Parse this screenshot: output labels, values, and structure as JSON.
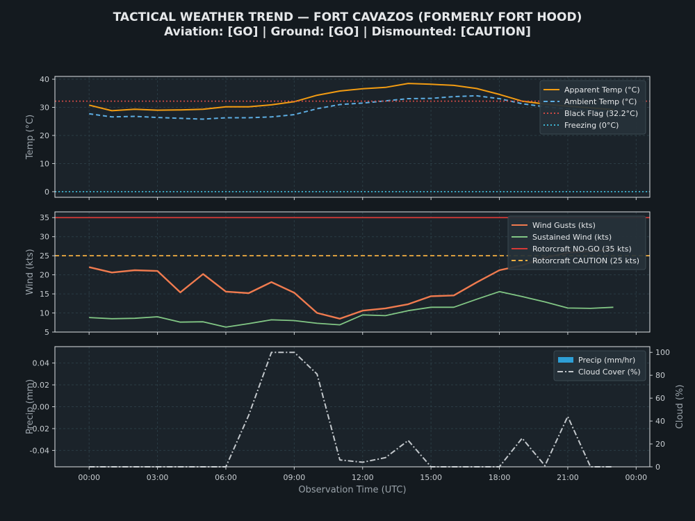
{
  "chart_data": {
    "title": "TACTICAL WEATHER TREND — FORT CAVAZOS (FORMERLY FORT HOOD)",
    "subtitle": "Aviation: [GO]  |  Ground: [GO]  |  Dismounted: [CAUTION]",
    "xlabel": "Observation Time (UTC)",
    "x_ticks": [
      "00:00",
      "03:00",
      "06:00",
      "09:00",
      "12:00",
      "15:00",
      "18:00",
      "21:00",
      "00:00"
    ],
    "x_hours": [
      0,
      1,
      2,
      3,
      4,
      5,
      6,
      7,
      8,
      9,
      10,
      11,
      12,
      13,
      14,
      15,
      16,
      17,
      18,
      19,
      20,
      21,
      22,
      23
    ],
    "x_range_hours": [
      -1.5,
      24.6
    ],
    "panels": [
      {
        "type": "line",
        "ylabel": "Temp (°C)",
        "ylim": [
          -2,
          41
        ],
        "y_ticks": [
          0,
          10,
          20,
          30,
          40
        ],
        "legend": "top-right",
        "series": [
          {
            "name": "Apparent Temp (°C)",
            "color": "#f39c12",
            "style": "solid",
            "values": [
              30.8,
              28.8,
              29.3,
              29.0,
              29.1,
              29.3,
              30.2,
              30.2,
              30.9,
              32.0,
              34.3,
              35.8,
              36.6,
              37.1,
              38.5,
              38.2,
              37.8,
              36.7,
              34.6,
              32.2,
              31.2,
              30.4,
              29.8,
              29.2
            ]
          },
          {
            "name": "Ambient Temp (°C)",
            "color": "#5dade2",
            "style": "dashed",
            "values": [
              27.7,
              26.6,
              26.8,
              26.4,
              26.1,
              25.8,
              26.3,
              26.3,
              26.6,
              27.4,
              29.5,
              31.0,
              31.5,
              32.3,
              33.1,
              33.2,
              33.8,
              34.1,
              33.1,
              31.3,
              30.2,
              29.4,
              28.8,
              28.3
            ]
          },
          {
            "name": "Black Flag (32.2°C)",
            "color": "#cd4a45",
            "style": "dotted",
            "constant": 32.2
          },
          {
            "name": "Freezing (0°C)",
            "color": "#3fb6d3",
            "style": "dotted",
            "constant": 0
          }
        ]
      },
      {
        "type": "line",
        "ylabel": "Wind (kts)",
        "ylim": [
          5,
          36.5
        ],
        "y_ticks": [
          5,
          10,
          15,
          20,
          25,
          30,
          35
        ],
        "legend": "top-right",
        "series": [
          {
            "name": "Wind Gusts (kts)",
            "color": "#f07b4f",
            "style": "solid",
            "width": 2.4,
            "values": [
              22.0,
              20.6,
              21.2,
              21.0,
              15.4,
              20.2,
              15.6,
              15.2,
              18.1,
              15.3,
              10.0,
              8.5,
              10.6,
              11.2,
              12.3,
              14.4,
              14.6,
              18.0,
              21.2,
              22.5,
              24.5,
              25.8,
              26.2,
              26.5
            ]
          },
          {
            "name": "Sustained Wind (kts)",
            "color": "#82c785",
            "style": "solid",
            "width": 1.8,
            "values": [
              8.8,
              8.5,
              8.6,
              9.0,
              7.6,
              7.7,
              6.3,
              7.2,
              8.2,
              8.0,
              7.3,
              6.9,
              9.5,
              9.3,
              10.6,
              11.5,
              11.5,
              13.6,
              15.6,
              14.3,
              12.9,
              11.3,
              11.2,
              11.5
            ]
          },
          {
            "name": "Rotorcraft NO-GO (35 kts)",
            "color": "#d63a37",
            "style": "solid",
            "constant": 35
          },
          {
            "name": "Rotorcraft CAUTION (25 kts)",
            "color": "#f5b041",
            "style": "dashed",
            "constant": 25
          }
        ]
      },
      {
        "type": "bar+line",
        "ylabel": "Precip (mm)",
        "ylabel_color": "#2e9fd6",
        "ylim": [
          -0.055,
          0.055
        ],
        "y_ticks": [
          -0.04,
          -0.02,
          0.0,
          0.02,
          0.04
        ],
        "y2label": "Cloud (%)",
        "y2lim": [
          0,
          105
        ],
        "y2_ticks": [
          0,
          20,
          40,
          60,
          80,
          100
        ],
        "legend": "top-right",
        "series": [
          {
            "name": "Precip (mm/hr)",
            "color": "#2e9fd6",
            "kind": "bar",
            "values": [
              0,
              0,
              0,
              0,
              0,
              0,
              0,
              0,
              0,
              0,
              0,
              0,
              0,
              0,
              0,
              0,
              0,
              0,
              0,
              0,
              0,
              0,
              0,
              0
            ]
          },
          {
            "name": "Cloud Cover (%)",
            "color": "#c3c8cc",
            "style": "dashdot",
            "axis": "right",
            "values": [
              0,
              0,
              0,
              0,
              0,
              0,
              0,
              45,
              100,
              100,
              81,
              6,
              4,
              8,
              23,
              0,
              0,
              0,
              0,
              25,
              1,
              44,
              0,
              0
            ]
          }
        ]
      }
    ]
  }
}
